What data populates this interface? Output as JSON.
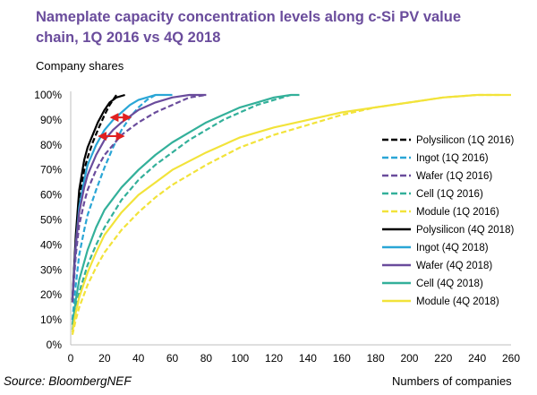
{
  "chart_data": {
    "type": "line",
    "title": "Nameplate capacity concentration levels along c-Si PV value chain, 1Q 2016 vs 4Q 2018",
    "ylabel": "Company shares",
    "xlabel": "Numbers of companies",
    "source": "Source: BloombergNEF",
    "xlim": [
      0,
      260
    ],
    "ylim": [
      0,
      100
    ],
    "x_ticks": [
      0,
      20,
      40,
      60,
      80,
      100,
      120,
      140,
      160,
      180,
      200,
      220,
      240,
      260
    ],
    "y_ticks": [
      0,
      10,
      20,
      30,
      40,
      50,
      60,
      70,
      80,
      90,
      100
    ],
    "y_tick_labels": [
      "0%",
      "10%",
      "20%",
      "30%",
      "40%",
      "50%",
      "60%",
      "70%",
      "80%",
      "90%",
      "100%"
    ],
    "grid": false,
    "legend_position": "right",
    "series": [
      {
        "name": "Polysilicon (1Q 2016)",
        "color": "#000000",
        "dash": true,
        "points": [
          [
            1,
            17
          ],
          [
            3,
            42
          ],
          [
            5,
            58
          ],
          [
            8,
            70
          ],
          [
            10,
            75
          ],
          [
            13,
            81
          ],
          [
            16,
            86
          ],
          [
            20,
            92
          ],
          [
            23,
            96
          ],
          [
            25,
            98
          ],
          [
            27,
            100
          ]
        ]
      },
      {
        "name": "Ingot (1Q 2016)",
        "color": "#2aa6d6",
        "dash": true,
        "points": [
          [
            1,
            10
          ],
          [
            3,
            24
          ],
          [
            5,
            36
          ],
          [
            8,
            46
          ],
          [
            10,
            52
          ],
          [
            15,
            62
          ],
          [
            20,
            71
          ],
          [
            25,
            79
          ],
          [
            30,
            86
          ],
          [
            35,
            91
          ],
          [
            40,
            95
          ],
          [
            45,
            98
          ],
          [
            50,
            100
          ]
        ]
      },
      {
        "name": "Wafer (1Q 2016)",
        "color": "#6a4c9c",
        "dash": true,
        "points": [
          [
            1,
            17
          ],
          [
            3,
            36
          ],
          [
            5,
            48
          ],
          [
            8,
            57
          ],
          [
            10,
            62
          ],
          [
            15,
            70
          ],
          [
            20,
            76
          ],
          [
            25,
            80
          ],
          [
            30,
            84
          ],
          [
            40,
            89
          ],
          [
            50,
            93
          ],
          [
            60,
            96
          ],
          [
            70,
            99
          ],
          [
            80,
            100
          ]
        ]
      },
      {
        "name": "Cell (1Q 2016)",
        "color": "#33b09a",
        "dash": true,
        "points": [
          [
            1,
            6
          ],
          [
            3,
            14
          ],
          [
            5,
            21
          ],
          [
            10,
            32
          ],
          [
            15,
            40
          ],
          [
            20,
            47
          ],
          [
            30,
            58
          ],
          [
            40,
            66
          ],
          [
            50,
            72
          ],
          [
            60,
            77
          ],
          [
            70,
            82
          ],
          [
            80,
            86
          ],
          [
            90,
            90
          ],
          [
            100,
            93
          ],
          [
            110,
            96
          ],
          [
            120,
            98
          ],
          [
            130,
            100
          ]
        ]
      },
      {
        "name": "Module (1Q 2016)",
        "color": "#f2e33a",
        "dash": true,
        "points": [
          [
            1,
            4
          ],
          [
            3,
            10
          ],
          [
            5,
            15
          ],
          [
            10,
            24
          ],
          [
            15,
            31
          ],
          [
            20,
            37
          ],
          [
            30,
            46
          ],
          [
            40,
            53
          ],
          [
            50,
            59
          ],
          [
            60,
            64
          ],
          [
            80,
            72
          ],
          [
            100,
            79
          ],
          [
            120,
            84
          ],
          [
            140,
            88
          ],
          [
            160,
            92
          ],
          [
            180,
            95
          ],
          [
            200,
            97
          ],
          [
            220,
            99
          ],
          [
            240,
            100
          ],
          [
            255,
            100
          ]
        ]
      },
      {
        "name": "Polysilicon (4Q 2018)",
        "color": "#000000",
        "dash": false,
        "points": [
          [
            1,
            18
          ],
          [
            3,
            44
          ],
          [
            5,
            62
          ],
          [
            8,
            74
          ],
          [
            10,
            79
          ],
          [
            13,
            84
          ],
          [
            16,
            89
          ],
          [
            20,
            94
          ],
          [
            23,
            97
          ],
          [
            27,
            99
          ],
          [
            32,
            100
          ]
        ]
      },
      {
        "name": "Ingot (4Q 2018)",
        "color": "#2aa6d6",
        "dash": false,
        "points": [
          [
            1,
            18
          ],
          [
            3,
            40
          ],
          [
            5,
            55
          ],
          [
            8,
            66
          ],
          [
            10,
            72
          ],
          [
            15,
            80
          ],
          [
            20,
            86
          ],
          [
            25,
            90
          ],
          [
            30,
            93
          ],
          [
            35,
            96
          ],
          [
            40,
            98
          ],
          [
            45,
            99
          ],
          [
            50,
            100
          ],
          [
            60,
            100
          ]
        ]
      },
      {
        "name": "Wafer (4Q 2018)",
        "color": "#6a4c9c",
        "dash": false,
        "points": [
          [
            1,
            18
          ],
          [
            3,
            40
          ],
          [
            5,
            53
          ],
          [
            8,
            63
          ],
          [
            10,
            68
          ],
          [
            15,
            76
          ],
          [
            20,
            82
          ],
          [
            25,
            86
          ],
          [
            30,
            89
          ],
          [
            40,
            94
          ],
          [
            50,
            97
          ],
          [
            60,
            99
          ],
          [
            70,
            100
          ],
          [
            80,
            100
          ]
        ]
      },
      {
        "name": "Cell (4Q 2018)",
        "color": "#33b09a",
        "dash": false,
        "points": [
          [
            1,
            8
          ],
          [
            3,
            18
          ],
          [
            5,
            26
          ],
          [
            10,
            38
          ],
          [
            15,
            47
          ],
          [
            20,
            54
          ],
          [
            30,
            63
          ],
          [
            40,
            70
          ],
          [
            50,
            76
          ],
          [
            60,
            81
          ],
          [
            70,
            85
          ],
          [
            80,
            89
          ],
          [
            90,
            92
          ],
          [
            100,
            95
          ],
          [
            110,
            97
          ],
          [
            120,
            99
          ],
          [
            130,
            100
          ],
          [
            135,
            100
          ]
        ]
      },
      {
        "name": "Module (4Q 2018)",
        "color": "#f2e33a",
        "dash": false,
        "points": [
          [
            1,
            5
          ],
          [
            3,
            13
          ],
          [
            5,
            19
          ],
          [
            10,
            29
          ],
          [
            15,
            37
          ],
          [
            20,
            44
          ],
          [
            30,
            53
          ],
          [
            40,
            60
          ],
          [
            50,
            65
          ],
          [
            60,
            70
          ],
          [
            80,
            77
          ],
          [
            100,
            83
          ],
          [
            120,
            87
          ],
          [
            140,
            90
          ],
          [
            160,
            93
          ],
          [
            180,
            95
          ],
          [
            200,
            97
          ],
          [
            220,
            99
          ],
          [
            240,
            100
          ],
          [
            260,
            100
          ]
        ]
      }
    ],
    "annotations": [
      {
        "type": "double-arrow",
        "color": "#e02020",
        "y": 91,
        "x_from": 24,
        "x_to": 35
      },
      {
        "type": "double-arrow",
        "color": "#e02020",
        "y": 83.5,
        "x_from": 17,
        "x_to": 31
      }
    ]
  }
}
